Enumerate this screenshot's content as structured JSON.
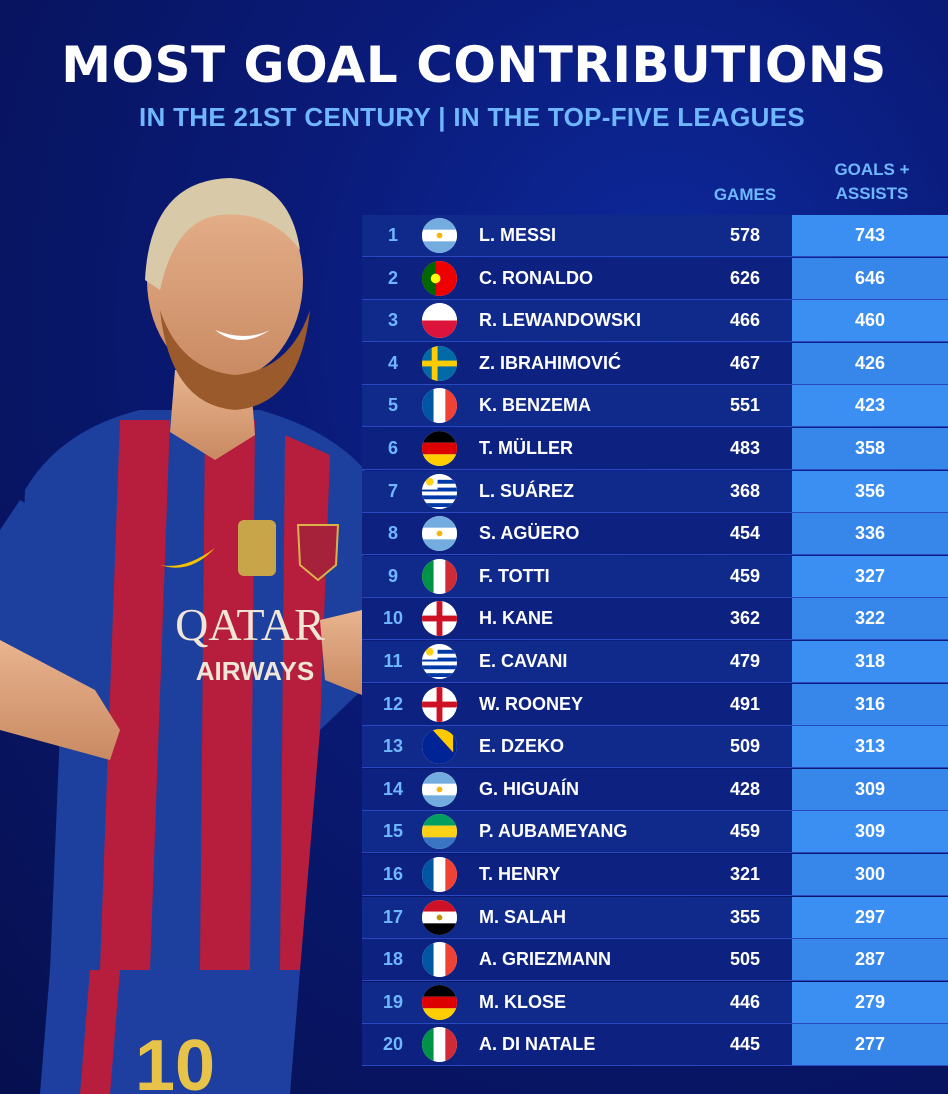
{
  "title": "MOST GOAL CONTRIBUTIONS",
  "subtitle": "IN THE 21ST CENTURY | IN THE TOP-FIVE LEAGUES",
  "columns": {
    "games": "GAMES",
    "goals_assists": "GOALS +\nASSISTS"
  },
  "player_image": {
    "shirt_text": "QATAR AIRWAYS",
    "number": "10"
  },
  "chart_data": {
    "type": "table",
    "title": "MOST GOAL CONTRIBUTIONS",
    "subtitle": "IN THE 21ST CENTURY | IN THE TOP-FIVE LEAGUES",
    "headers": [
      "GAMES",
      "GOALS + ASSISTS"
    ],
    "rows": [
      {
        "rank": "1",
        "flag": "argentina",
        "name": "L. MESSI",
        "games": "578",
        "ga": "743"
      },
      {
        "rank": "2",
        "flag": "portugal",
        "name": "C. RONALDO",
        "games": "626",
        "ga": "646"
      },
      {
        "rank": "3",
        "flag": "poland",
        "name": "R. LEWANDOWSKI",
        "games": "466",
        "ga": "460"
      },
      {
        "rank": "4",
        "flag": "sweden",
        "name": "Z. IBRAHIMOVIĆ",
        "games": "467",
        "ga": "426"
      },
      {
        "rank": "5",
        "flag": "france",
        "name": "K. BENZEMA",
        "games": "551",
        "ga": "423"
      },
      {
        "rank": "6",
        "flag": "germany",
        "name": "T. MÜLLER",
        "games": "483",
        "ga": "358"
      },
      {
        "rank": "7",
        "flag": "uruguay",
        "name": "L. SUÁREZ",
        "games": "368",
        "ga": "356"
      },
      {
        "rank": "8",
        "flag": "argentina",
        "name": "S. AGÜERO",
        "games": "454",
        "ga": "336"
      },
      {
        "rank": "9",
        "flag": "italy",
        "name": "F. TOTTI",
        "games": "459",
        "ga": "327"
      },
      {
        "rank": "10",
        "flag": "england",
        "name": "H. KANE",
        "games": "362",
        "ga": "322"
      },
      {
        "rank": "11",
        "flag": "uruguay",
        "name": "E. CAVANI",
        "games": "479",
        "ga": "318"
      },
      {
        "rank": "12",
        "flag": "england",
        "name": "W. ROONEY",
        "games": "491",
        "ga": "316"
      },
      {
        "rank": "13",
        "flag": "bosnia",
        "name": "E. DZEKO",
        "games": "509",
        "ga": "313"
      },
      {
        "rank": "14",
        "flag": "argentina",
        "name": "G. HIGUAÍN",
        "games": "428",
        "ga": "309"
      },
      {
        "rank": "15",
        "flag": "gabon",
        "name": "P. AUBAMEYANG",
        "games": "459",
        "ga": "309"
      },
      {
        "rank": "16",
        "flag": "france",
        "name": "T. HENRY",
        "games": "321",
        "ga": "300"
      },
      {
        "rank": "17",
        "flag": "egypt",
        "name": "M. SALAH",
        "games": "355",
        "ga": "297"
      },
      {
        "rank": "18",
        "flag": "france",
        "name": "A. GRIEZMANN",
        "games": "505",
        "ga": "287"
      },
      {
        "rank": "19",
        "flag": "germany",
        "name": "M. KLOSE",
        "games": "446",
        "ga": "279"
      },
      {
        "rank": "20",
        "flag": "italy",
        "name": "A. DI NATALE",
        "games": "445",
        "ga": "277"
      }
    ]
  },
  "colors": {
    "background": "#0a1a78",
    "title": "#ffffff",
    "subtitle": "#6fb7ff",
    "row_bg": "#102a8c",
    "ga_column": "#3c8ff2"
  }
}
